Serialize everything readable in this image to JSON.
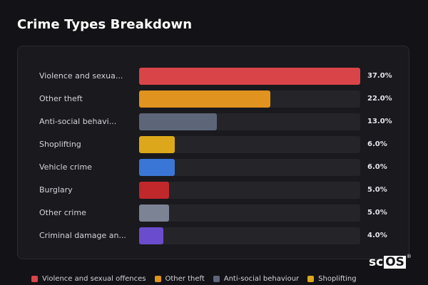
{
  "header": {
    "title": "Crime Types Breakdown"
  },
  "chart_data": {
    "type": "bar",
    "orientation": "horizontal",
    "title": "Crime Types Breakdown",
    "categories": [
      "Violence and sexua...",
      "Other theft",
      "Anti-social behavi...",
      "Shoplifting",
      "Vehicle crime",
      "Burglary",
      "Other crime",
      "Criminal damage an..."
    ],
    "values": [
      37.0,
      22.0,
      13.0,
      6.0,
      6.0,
      5.0,
      5.0,
      4.0
    ],
    "value_labels": [
      "37.0%",
      "22.0%",
      "13.0%",
      "6.0%",
      "6.0%",
      "5.0%",
      "5.0%",
      "4.0%"
    ],
    "colors": [
      "#d94448",
      "#e0931f",
      "#5d6679",
      "#dca71a",
      "#3a76d6",
      "#c1282b",
      "#7b8394",
      "#6a4ccf"
    ],
    "xlim": [
      0,
      37
    ],
    "grid": false,
    "legend_position": "bottom"
  },
  "legend": {
    "items": [
      {
        "label": "Violence and sexual offences",
        "color": "#d94448"
      },
      {
        "label": "Other theft",
        "color": "#e0931f"
      },
      {
        "label": "Anti-social behaviour",
        "color": "#5d6679"
      },
      {
        "label": "Shoplifting",
        "color": "#dca71a"
      }
    ]
  },
  "watermark": {
    "prefix": "sc",
    "boxed": "OS",
    "mark": "®"
  }
}
